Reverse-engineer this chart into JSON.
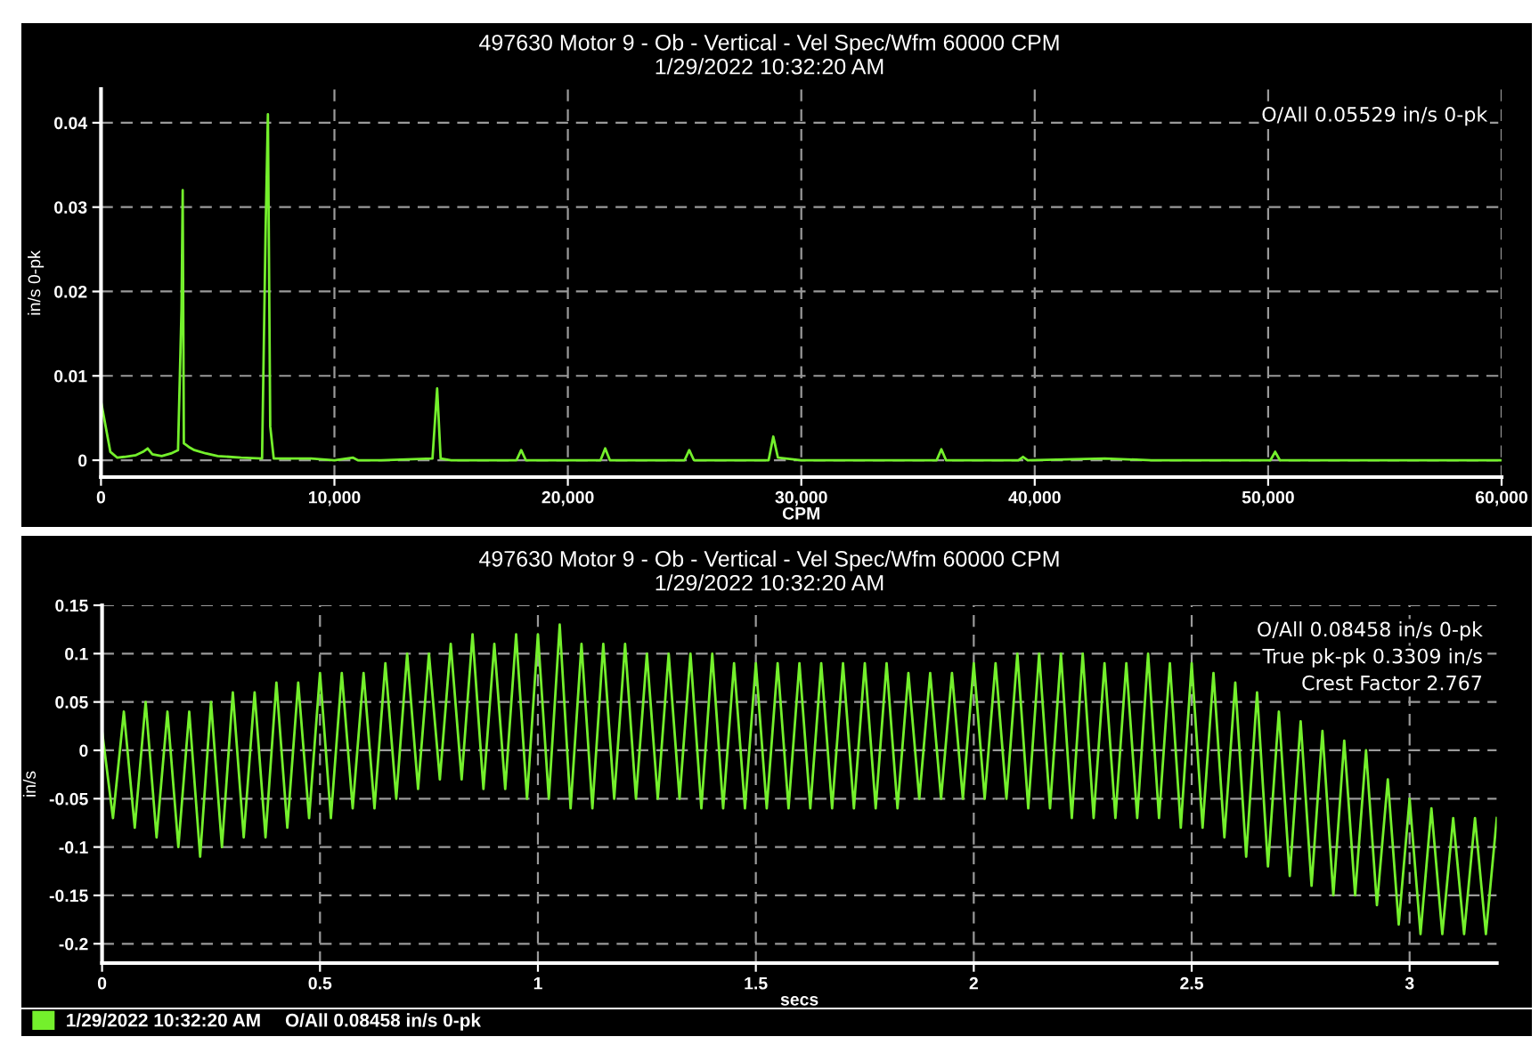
{
  "chart_data": [
    {
      "type": "line",
      "title": "497630 Motor 9 - Ob - Vertical - Vel Spec/Wfm 60000 CPM",
      "subtitle": "1/29/2022 10:32:20 AM",
      "xlabel": "CPM",
      "ylabel": "in/s 0-pk",
      "x": [
        0,
        200,
        400,
        700,
        1000,
        1500,
        1800,
        2000,
        2200,
        2600,
        3000,
        3300,
        3450,
        3500,
        3550,
        3650,
        3800,
        4000,
        4500,
        5000,
        6000,
        6900,
        7050,
        7150,
        7250,
        7400,
        8000,
        9000,
        10000,
        10800,
        11000,
        12000,
        14200,
        14400,
        14550,
        15000,
        17800,
        18000,
        18200,
        21400,
        21600,
        21800,
        25000,
        25200,
        25400,
        28600,
        28800,
        29000,
        30000,
        35800,
        36000,
        36200,
        39300,
        39500,
        39700,
        43000,
        45000,
        50100,
        50300,
        50500,
        55000,
        60000
      ],
      "series": [
        {
          "color": "#74f02c",
          "values": [
            0.007,
            0.004,
            0.001,
            0.0003,
            0.0004,
            0.0006,
            0.001,
            0.0014,
            0.0007,
            0.0005,
            0.0008,
            0.0012,
            0.018,
            0.032,
            0.002,
            0.0018,
            0.0015,
            0.0012,
            0.0008,
            0.0005,
            0.0003,
            0.0002,
            0.027,
            0.041,
            0.004,
            0.0002,
            0.0002,
            0.0002,
            0,
            0.0003,
            0,
            0,
            0.0002,
            0.0085,
            0.0002,
            0,
            0,
            0.0012,
            0,
            0,
            0.0014,
            0,
            0,
            0.0012,
            0,
            0,
            0.0028,
            0.0003,
            0,
            0,
            0.0013,
            0,
            0,
            0.0004,
            0,
            0.0002,
            0,
            0,
            0.001,
            0,
            0,
            0
          ]
        }
      ],
      "xlim": [
        0,
        60000
      ],
      "xticks": [
        0,
        {
          "value": 10000,
          "label": "10,000"
        },
        {
          "value": 20000,
          "label": "20,000"
        },
        {
          "value": 30000,
          "label": "30,000"
        },
        {
          "value": 40000,
          "label": "40,000"
        },
        {
          "value": 50000,
          "label": "50,000"
        },
        {
          "value": 60000,
          "label": "60,000"
        }
      ],
      "ylim": [
        -0.002,
        0.044
      ],
      "yticks": [
        0,
        0.01,
        0.02,
        0.03,
        0.04
      ],
      "grid": true,
      "line_style": "solid",
      "annotations": [
        "O/All 0.05529 in/s 0-pk"
      ]
    },
    {
      "type": "line",
      "title": "497630 Motor 9 - Ob - Vertical - Vel Spec/Wfm 60000 CPM",
      "subtitle": "1/29/2022 10:32:20 AM",
      "xlabel": "secs",
      "ylabel": "in/s",
      "x": [
        0,
        0.025,
        0.05,
        0.075,
        0.1,
        0.125,
        0.15,
        0.175,
        0.2,
        0.225,
        0.25,
        0.275,
        0.3,
        0.325,
        0.35,
        0.375,
        0.4,
        0.425,
        0.45,
        0.475,
        0.5,
        0.525,
        0.55,
        0.575,
        0.6,
        0.625,
        0.65,
        0.675,
        0.7,
        0.725,
        0.75,
        0.775,
        0.8,
        0.825,
        0.85,
        0.875,
        0.9,
        0.925,
        0.95,
        0.975,
        1.0,
        1.025,
        1.05,
        1.075,
        1.1,
        1.125,
        1.15,
        1.175,
        1.2,
        1.225,
        1.25,
        1.275,
        1.3,
        1.325,
        1.35,
        1.375,
        1.4,
        1.425,
        1.45,
        1.475,
        1.5,
        1.525,
        1.55,
        1.575,
        1.6,
        1.625,
        1.65,
        1.675,
        1.7,
        1.725,
        1.75,
        1.775,
        1.8,
        1.825,
        1.85,
        1.875,
        1.9,
        1.925,
        1.95,
        1.975,
        2.0,
        2.025,
        2.05,
        2.075,
        2.1,
        2.125,
        2.15,
        2.175,
        2.2,
        2.225,
        2.25,
        2.275,
        2.3,
        2.325,
        2.35,
        2.375,
        2.4,
        2.425,
        2.45,
        2.475,
        2.5,
        2.525,
        2.55,
        2.575,
        2.6,
        2.625,
        2.65,
        2.675,
        2.7,
        2.725,
        2.75,
        2.775,
        2.8,
        2.825,
        2.85,
        2.875,
        2.9,
        2.925,
        2.95,
        2.975,
        3.0,
        3.025,
        3.05,
        3.075,
        3.1,
        3.125,
        3.15,
        3.175,
        3.2
      ],
      "series": [
        {
          "name": "1/29/2022 10:32:20 AM",
          "color": "#74f02c",
          "values": [
            0.02,
            -0.07,
            0.04,
            -0.08,
            0.05,
            -0.09,
            0.04,
            -0.1,
            0.04,
            -0.11,
            0.05,
            -0.1,
            0.06,
            -0.09,
            0.06,
            -0.09,
            0.07,
            -0.08,
            0.07,
            -0.07,
            0.08,
            -0.07,
            0.08,
            -0.06,
            0.08,
            -0.06,
            0.09,
            -0.05,
            0.1,
            -0.04,
            0.1,
            -0.03,
            0.11,
            -0.03,
            0.12,
            -0.04,
            0.11,
            -0.04,
            0.12,
            -0.05,
            0.12,
            -0.05,
            0.13,
            -0.06,
            0.11,
            -0.06,
            0.11,
            -0.05,
            0.11,
            -0.05,
            0.1,
            -0.05,
            0.1,
            -0.05,
            0.1,
            -0.06,
            0.1,
            -0.06,
            0.09,
            -0.06,
            0.09,
            -0.06,
            0.09,
            -0.06,
            0.09,
            -0.06,
            0.09,
            -0.06,
            0.09,
            -0.06,
            0.09,
            -0.06,
            0.09,
            -0.06,
            0.08,
            -0.05,
            0.08,
            -0.05,
            0.08,
            -0.05,
            0.09,
            -0.05,
            0.09,
            -0.05,
            0.1,
            -0.06,
            0.1,
            -0.06,
            0.1,
            -0.07,
            0.1,
            -0.07,
            0.09,
            -0.07,
            0.09,
            -0.07,
            0.1,
            -0.07,
            0.09,
            -0.08,
            0.09,
            -0.08,
            0.08,
            -0.09,
            0.07,
            -0.11,
            0.06,
            -0.12,
            0.04,
            -0.13,
            0.03,
            -0.14,
            0.02,
            -0.15,
            0.01,
            -0.15,
            0.0,
            -0.16,
            -0.03,
            -0.18,
            -0.05,
            -0.19,
            -0.06,
            -0.19,
            -0.07,
            -0.19,
            -0.07,
            -0.19,
            -0.07
          ]
        }
      ],
      "xlim": [
        0,
        3.2
      ],
      "xticks": [
        0,
        0.5,
        1,
        1.5,
        2,
        2.5,
        3
      ],
      "ylim": [
        -0.22,
        0.15
      ],
      "yticks": [
        -0.2,
        -0.15,
        -0.1,
        -0.05,
        0,
        0.05,
        0.1,
        0.15
      ],
      "grid": true,
      "line_style": "solid",
      "legend": "bottom left",
      "annotations": [
        "O/All 0.08458 in/s 0-pk",
        "True pk-pk 0.3309 in/s",
        "Crest Factor 2.767",
        "O/All 0.08458 in/s 0-pk"
      ]
    }
  ]
}
